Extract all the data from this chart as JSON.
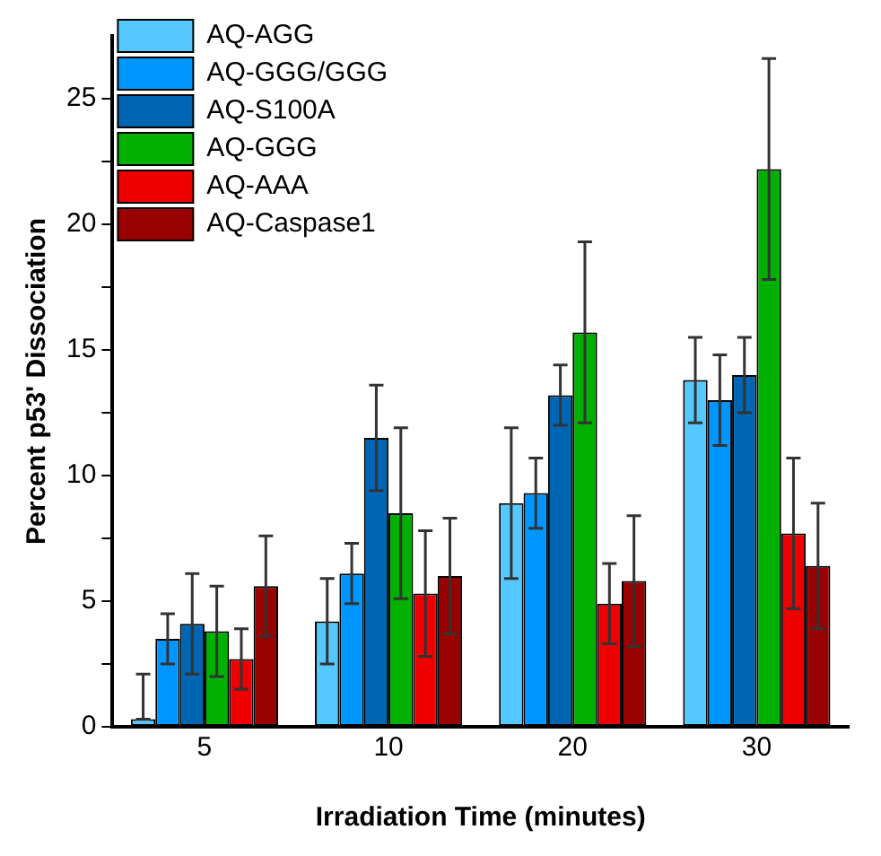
{
  "chart_data": {
    "type": "bar",
    "xlabel": "Irradiation Time (minutes)",
    "ylabel": "Percent p53' Dissociation",
    "categories": [
      "5",
      "10",
      "20",
      "30"
    ],
    "series": [
      {
        "name": "AQ-AGG",
        "color": "#55c8ff",
        "values": [
          0.3,
          4.2,
          8.9,
          13.8
        ],
        "errors": [
          [
            0.3,
            2.1
          ],
          1.7,
          3.0,
          1.7
        ]
      },
      {
        "name": "AQ-GGG/GGG",
        "color": "#0096ff",
        "values": [
          3.5,
          6.1,
          9.3,
          13.0
        ],
        "errors": [
          1.0,
          1.2,
          1.4,
          1.8
        ]
      },
      {
        "name": "AQ-S100A",
        "color": "#0066b3",
        "values": [
          4.1,
          11.5,
          13.2,
          14.0
        ],
        "errors": [
          2.0,
          2.1,
          1.2,
          1.5
        ]
      },
      {
        "name": "AQ-GGG",
        "color": "#00b000",
        "values": [
          3.8,
          8.5,
          15.7,
          22.2
        ],
        "errors": [
          1.8,
          3.4,
          3.6,
          4.4
        ]
      },
      {
        "name": "AQ-AAA",
        "color": "#ee0000",
        "values": [
          2.7,
          5.3,
          4.9,
          7.7
        ],
        "errors": [
          1.2,
          2.5,
          1.6,
          3.0
        ]
      },
      {
        "name": "AQ-Caspase1",
        "color": "#990000",
        "values": [
          5.6,
          6.0,
          5.8,
          6.4
        ],
        "errors": [
          2.0,
          2.3,
          2.6,
          2.5
        ]
      }
    ],
    "ylim": [
      0,
      27.5
    ],
    "yticks": [
      0,
      {
        "value": 2.5,
        "label": null
      },
      5,
      {
        "value": 7.5,
        "label": null
      },
      10,
      {
        "value": 12.5,
        "label": null
      },
      15,
      {
        "value": 17.5,
        "label": null
      },
      20,
      {
        "value": 22.5,
        "label": null
      },
      25
    ],
    "grid": false,
    "legend": "top left"
  }
}
